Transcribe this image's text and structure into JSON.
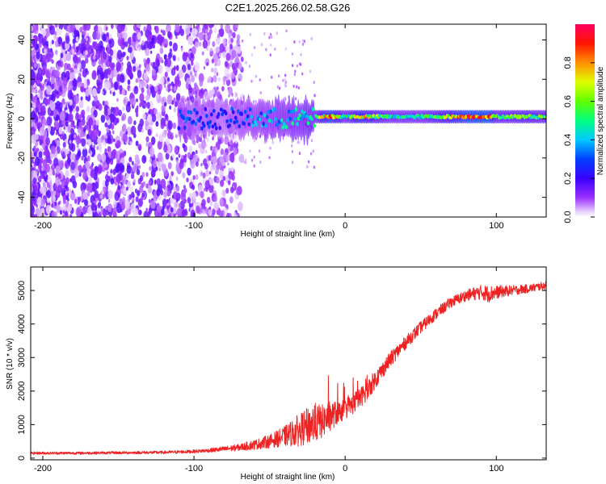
{
  "title": "C2E1.2025.266.02.58.G26",
  "chart_data": [
    {
      "type": "heatmap",
      "name": "spectrogram",
      "xlabel": "Height of straight line (km)",
      "ylabel": "Frequency (Hz)",
      "xlim": [
        -208,
        133
      ],
      "ylim": [
        -50,
        48
      ],
      "xticks": [
        -200,
        -100,
        0,
        100
      ],
      "xtick_labels": [
        "-200",
        "-100",
        "0",
        "100"
      ],
      "yticks": [
        -40,
        -20,
        0,
        20,
        40
      ],
      "ytick_labels": [
        "-40",
        "-20",
        "0",
        "20",
        "40"
      ],
      "colorbar": {
        "label": "Normalized spectral amplitude",
        "range": [
          0,
          1
        ],
        "ticks": [
          0.0,
          0.2,
          0.4,
          0.6,
          0.8
        ],
        "tick_labels": [
          "0.0",
          "0.2",
          "0.4",
          "0.6",
          "0.8"
        ],
        "colormap": "rainbow (violet to red/magenta)"
      },
      "ridge": {
        "description": "Narrow ridge near 0 Hz; spectral amplitude increases with height",
        "x": [
          -105,
          -80,
          -60,
          -45,
          -30,
          -20,
          -10,
          0,
          10,
          30,
          50,
          70,
          80,
          95,
          100,
          120,
          133
        ],
        "amplitude": [
          0.3,
          0.25,
          0.35,
          0.4,
          0.45,
          0.5,
          0.85,
          0.5,
          0.75,
          0.5,
          0.5,
          0.7,
          0.9,
          0.95,
          0.55,
          0.6,
          0.55
        ]
      }
    },
    {
      "type": "line",
      "name": "snr",
      "xlabel": "Height of straight line (km)",
      "ylabel": "SNR (10 * v/v)",
      "xlim": [
        -208,
        133
      ],
      "ylim": [
        -50,
        5700
      ],
      "xticks": [
        -200,
        -100,
        0,
        100
      ],
      "xtick_labels": [
        "-200",
        "-100",
        "0",
        "100"
      ],
      "yticks": [
        0,
        1000,
        2000,
        3000,
        4000,
        5000
      ],
      "ytick_labels": [
        "0",
        "1000",
        "2000",
        "3000",
        "4000",
        "5000"
      ],
      "series": [
        {
          "name": "SNR",
          "color": "#ee2222",
          "x": [
            -208,
            -180,
            -150,
            -120,
            -100,
            -90,
            -80,
            -70,
            -60,
            -50,
            -40,
            -30,
            -25,
            -20,
            -15,
            -10,
            -5,
            0,
            5,
            10,
            15,
            20,
            25,
            30,
            40,
            50,
            60,
            70,
            80,
            90,
            95,
            100,
            110,
            120,
            133
          ],
          "y": [
            150,
            150,
            160,
            170,
            200,
            230,
            270,
            320,
            400,
            500,
            650,
            850,
            950,
            1050,
            1100,
            1250,
            1350,
            1450,
            1600,
            1800,
            2050,
            2350,
            2650,
            2950,
            3450,
            3900,
            4300,
            4650,
            4850,
            4950,
            4900,
            4950,
            5000,
            5050,
            5150
          ],
          "noise_amplitude": [
            40,
            40,
            40,
            45,
            50,
            60,
            80,
            100,
            150,
            200,
            300,
            500,
            550,
            600,
            500,
            450,
            350,
            300,
            300,
            300,
            300,
            280,
            250,
            230,
            200,
            180,
            170,
            160,
            170,
            220,
            260,
            200,
            150,
            130,
            120
          ]
        }
      ]
    }
  ]
}
